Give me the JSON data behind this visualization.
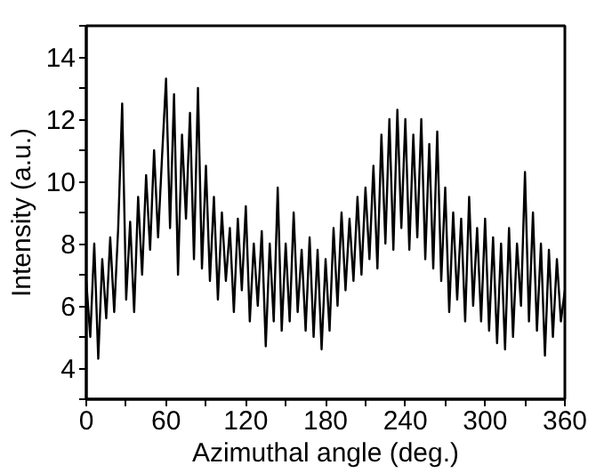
{
  "chart_data": {
    "type": "line",
    "xlabel": "Azimuthal angle (deg.)",
    "ylabel": "Intensity (a.u.)",
    "x": [
      0,
      3,
      6,
      9,
      12,
      15,
      18,
      21,
      24,
      27,
      30,
      33,
      36,
      39,
      42,
      45,
      48,
      51,
      54,
      57,
      60,
      63,
      66,
      69,
      72,
      75,
      78,
      81,
      84,
      87,
      90,
      93,
      96,
      99,
      102,
      105,
      108,
      111,
      114,
      117,
      120,
      123,
      126,
      129,
      132,
      135,
      138,
      141,
      144,
      147,
      150,
      153,
      156,
      159,
      162,
      165,
      168,
      171,
      174,
      177,
      180,
      183,
      186,
      189,
      192,
      195,
      198,
      201,
      204,
      207,
      210,
      213,
      216,
      219,
      222,
      225,
      228,
      231,
      234,
      237,
      240,
      243,
      246,
      249,
      252,
      255,
      258,
      261,
      264,
      267,
      270,
      273,
      276,
      279,
      282,
      285,
      288,
      291,
      294,
      297,
      300,
      303,
      306,
      309,
      312,
      315,
      318,
      321,
      324,
      327,
      330,
      333,
      336,
      339,
      342,
      345,
      348,
      351,
      354,
      357,
      360
    ],
    "series": [
      {
        "color": "#000000",
        "values": [
          6.8,
          5.0,
          8.0,
          4.3,
          7.5,
          5.6,
          8.2,
          5.8,
          8.5,
          12.5,
          6.2,
          8.7,
          5.8,
          9.5,
          7.0,
          10.2,
          7.8,
          11.0,
          8.2,
          10.8,
          13.3,
          8.5,
          12.8,
          7.0,
          11.5,
          8.8,
          12.2,
          7.5,
          13.0,
          7.2,
          10.5,
          6.8,
          9.5,
          6.2,
          9.0,
          6.8,
          8.5,
          5.8,
          8.8,
          6.5,
          9.2,
          5.5,
          8.0,
          6.0,
          8.4,
          4.7,
          8.0,
          5.5,
          9.8,
          5.2,
          8.0,
          5.5,
          9.0,
          5.8,
          7.8,
          5.2,
          8.2,
          5.0,
          7.8,
          4.6,
          7.5,
          5.2,
          8.5,
          6.0,
          9.0,
          6.5,
          8.8,
          6.8,
          9.5,
          7.0,
          9.8,
          7.5,
          10.5,
          7.2,
          11.5,
          8.0,
          12.0,
          7.8,
          12.3,
          8.5,
          12.0,
          7.8,
          11.5,
          8.2,
          12.0,
          7.5,
          11.2,
          7.2,
          11.6,
          6.8,
          9.8,
          5.8,
          9.0,
          6.2,
          8.8,
          5.5,
          9.5,
          6.0,
          8.5,
          5.5,
          8.8,
          5.2,
          8.2,
          4.8,
          8.0,
          4.6,
          8.5,
          5.0,
          8.0,
          6.0,
          10.3,
          5.5,
          9.0,
          5.2,
          8.0,
          4.4,
          7.8,
          5.0,
          7.5,
          5.5,
          6.5
        ]
      }
    ],
    "xlim": [
      0,
      360
    ],
    "xticks": [
      0,
      {
        "value": 30,
        "label": null
      },
      60,
      {
        "value": 90,
        "label": null
      },
      120,
      {
        "value": 150,
        "label": null
      },
      180,
      {
        "value": 210,
        "label": null
      },
      240,
      {
        "value": 270,
        "label": null
      },
      300,
      {
        "value": 330,
        "label": null
      },
      360
    ],
    "ylim": [
      3,
      15
    ],
    "yticks": [
      {
        "value": 3,
        "label": null
      },
      4,
      {
        "value": 5,
        "label": null
      },
      6,
      {
        "value": 7,
        "label": null
      },
      8,
      {
        "value": 9,
        "label": null
      },
      10,
      {
        "value": 11,
        "label": null
      },
      12,
      {
        "value": 13,
        "label": null
      },
      14,
      {
        "value": 15,
        "label": null
      }
    ],
    "grid": false,
    "marker": "none",
    "line_style": "solid"
  }
}
